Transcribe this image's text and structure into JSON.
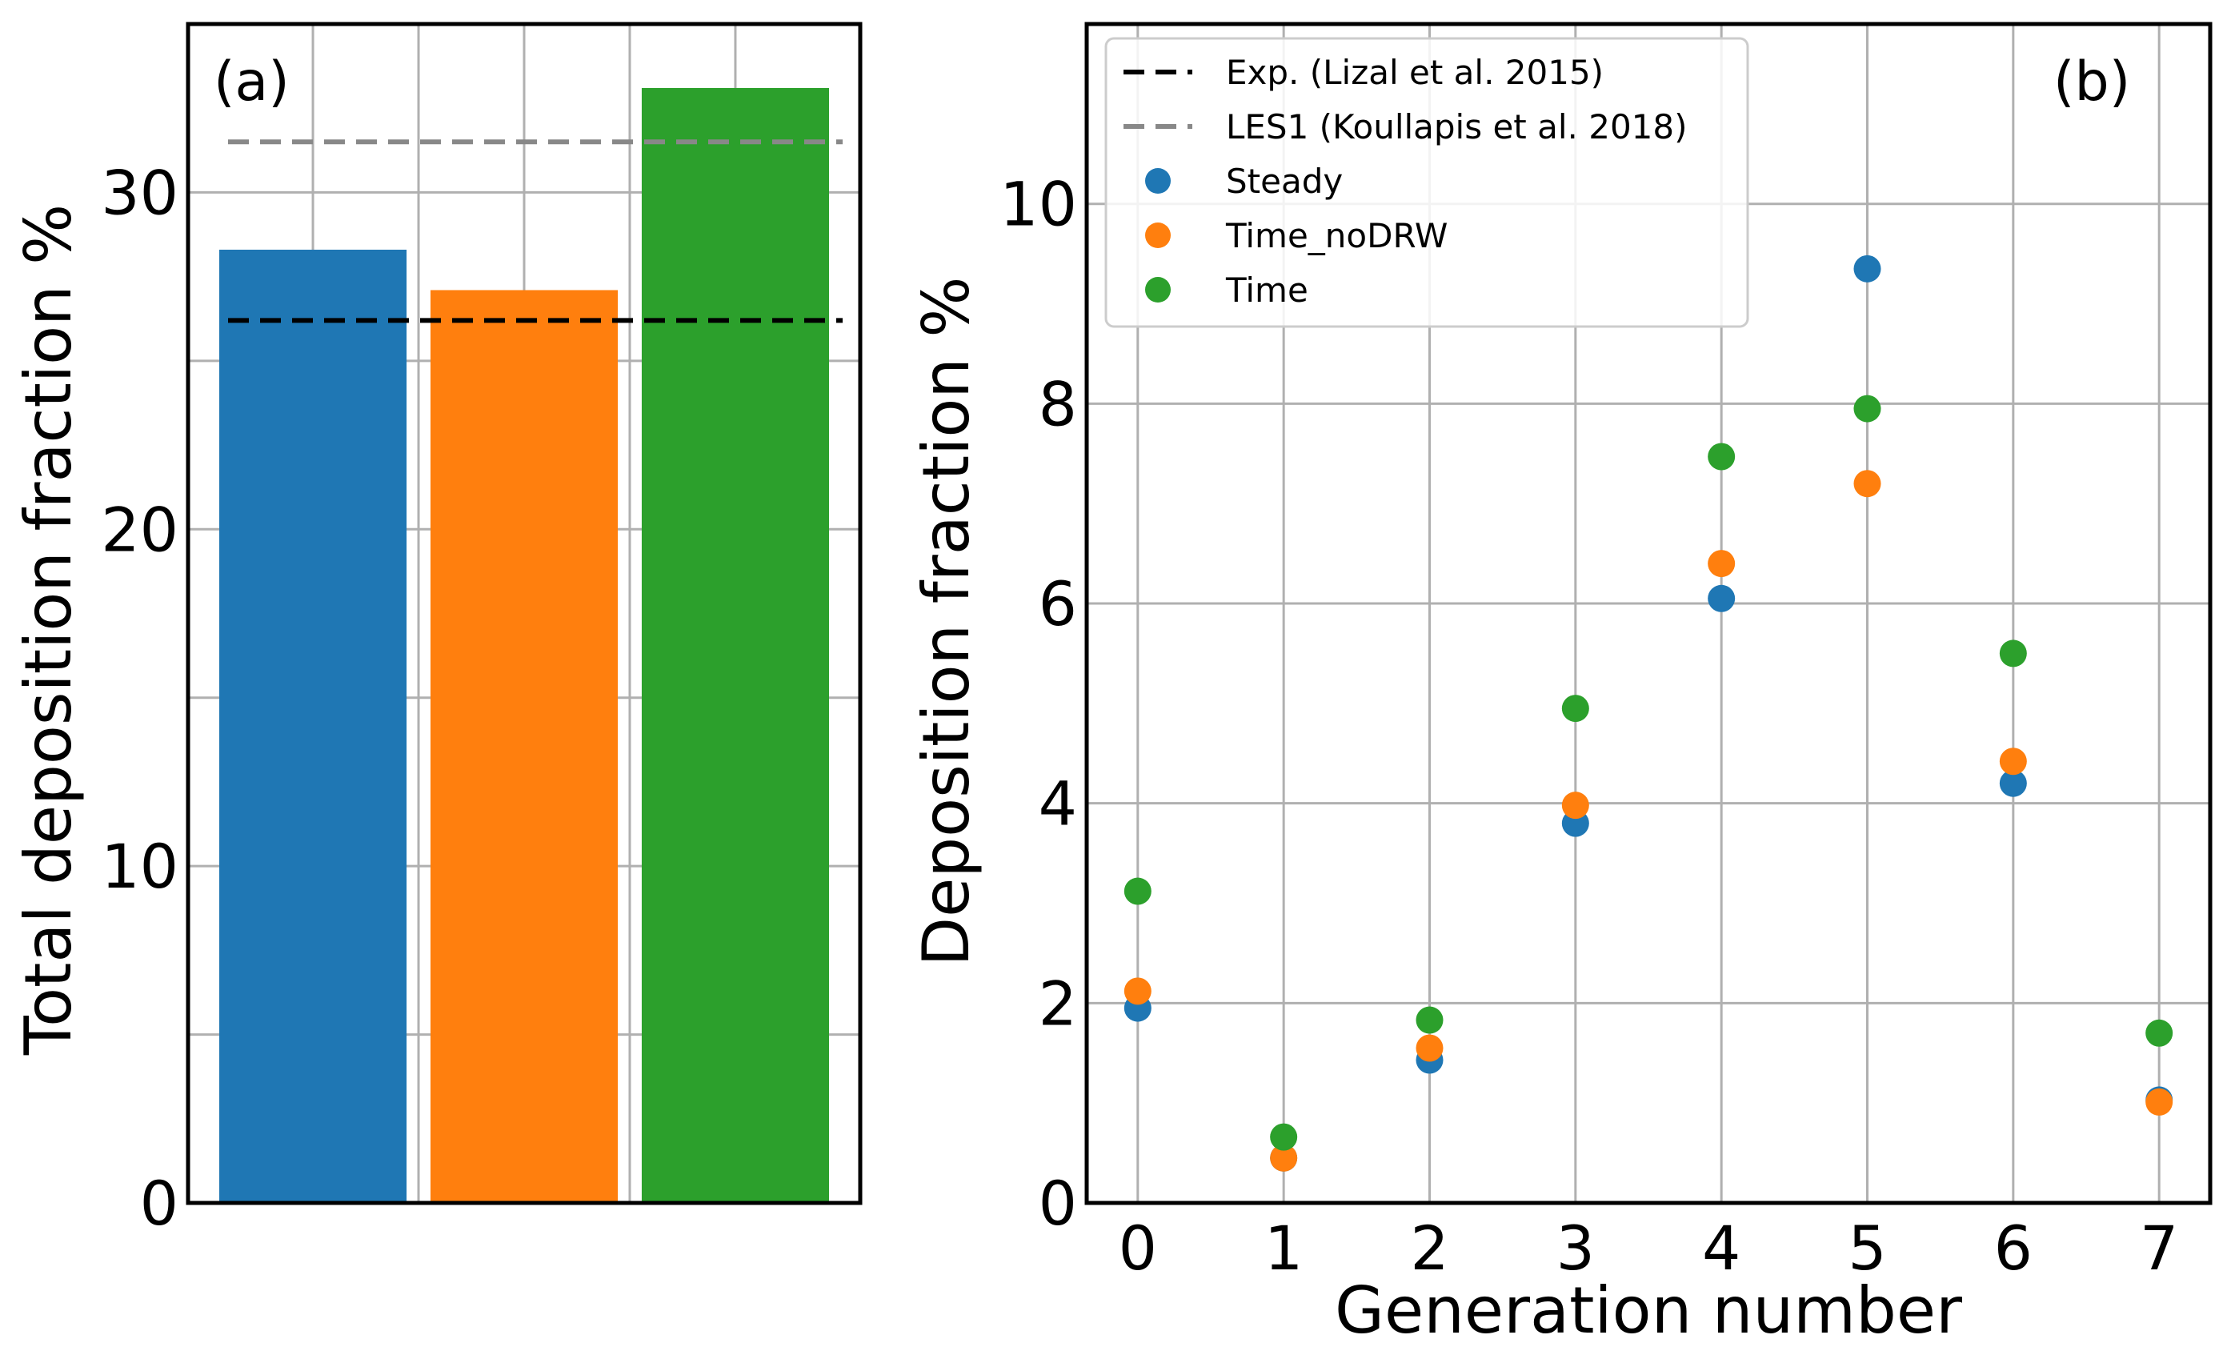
{
  "chart_data": [
    {
      "type": "bar",
      "panel_label": "(a)",
      "title": "",
      "xlabel": "",
      "ylabel": "Total deposition fraction %",
      "ylim": [
        0,
        35
      ],
      "yticks": [
        0,
        10,
        20,
        30
      ],
      "grid": true,
      "categories": [
        "Steady",
        "Time_noDRW",
        "Time"
      ],
      "values": [
        28.3,
        27.1,
        33.1
      ],
      "colors": [
        "#1f77b4",
        "#ff7f0e",
        "#2ca02c"
      ],
      "reference_lines": [
        {
          "name": "Exp. (Lizal et al. 2015)",
          "value": 26.2,
          "color": "#000000",
          "style": "dashed"
        },
        {
          "name": "LES1 (Koullapis et al. 2018)",
          "value": 31.5,
          "color": "#888888",
          "style": "dashed"
        }
      ]
    },
    {
      "type": "scatter",
      "panel_label": "(b)",
      "title": "",
      "xlabel": "Generation number",
      "ylabel": "Deposition fraction %",
      "xlim": [
        -0.35,
        7.35
      ],
      "ylim": [
        0,
        11.8
      ],
      "xticks": [
        0,
        1,
        2,
        3,
        4,
        5,
        6,
        7
      ],
      "yticks": [
        0,
        2,
        4,
        6,
        8,
        10
      ],
      "grid": true,
      "legend_position": "top-left",
      "legend": [
        {
          "label": "Exp. (Lizal et al. 2015)",
          "kind": "dashed",
          "color": "#000000"
        },
        {
          "label": "LES1 (Koullapis et al. 2018)",
          "kind": "dashed",
          "color": "#888888"
        },
        {
          "label": "Steady",
          "kind": "marker",
          "color": "#1f77b4"
        },
        {
          "label": "Time_noDRW",
          "kind": "marker",
          "color": "#ff7f0e"
        },
        {
          "label": "Time",
          "kind": "marker",
          "color": "#2ca02c"
        }
      ],
      "x": [
        0,
        1,
        2,
        3,
        4,
        5,
        6,
        7
      ],
      "series": [
        {
          "name": "Steady",
          "color": "#1f77b4",
          "values": [
            1.95,
            0.45,
            1.43,
            3.8,
            6.05,
            9.35,
            4.2,
            1.03
          ]
        },
        {
          "name": "Time_noDRW",
          "color": "#ff7f0e",
          "values": [
            2.12,
            0.45,
            1.55,
            3.98,
            6.4,
            7.2,
            4.42,
            1.01
          ]
        },
        {
          "name": "Time",
          "color": "#2ca02c",
          "values": [
            3.12,
            0.66,
            1.83,
            4.95,
            7.47,
            7.95,
            5.5,
            1.7
          ]
        }
      ]
    }
  ]
}
